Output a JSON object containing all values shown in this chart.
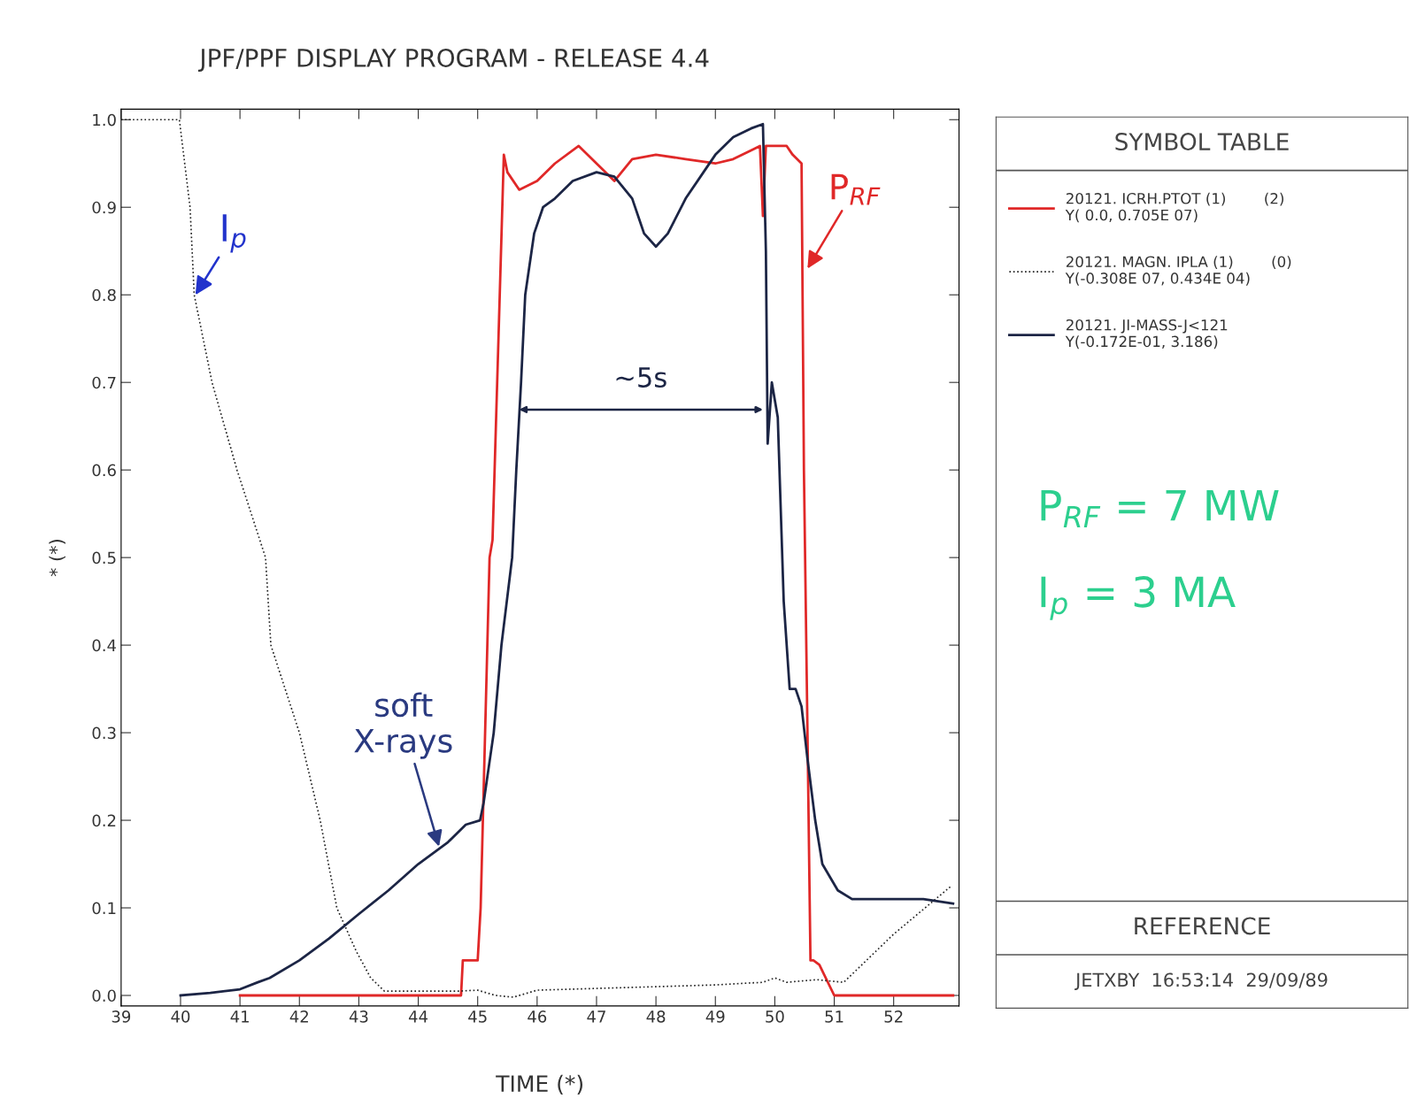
{
  "chart_data": {
    "type": "line",
    "title": "JPF/PPF DISPLAY PROGRAM - RELEASE 4.4",
    "xlabel": "TIME (*)",
    "ylabel": "* (*)",
    "xlim": [
      39,
      53.1
    ],
    "ylim": [
      -0.012,
      1.012
    ],
    "xticks": [
      39,
      40,
      41,
      42,
      43,
      44,
      45,
      46,
      47,
      48,
      49,
      50,
      51,
      52
    ],
    "yticks": [
      {
        "value": 0,
        "label": "0.0"
      },
      0.1,
      0.2,
      0.3,
      0.4,
      0.5,
      0.6,
      0.7,
      0.8,
      0.9,
      {
        "value": 1,
        "label": "1.0"
      }
    ],
    "grid": false,
    "legend": "right",
    "legend_title": "SYMBOL TABLE",
    "marker": "none",
    "series": [
      {
        "name": "20121. ICRH.PTOT (1)        (2)\nY( 0.0, 0.705E 07)",
        "color": "#e02828",
        "line_style": "solid",
        "x": [
          41.0,
          42.0,
          43.0,
          44.0,
          44.72,
          44.75,
          45.0,
          45.05,
          45.2,
          45.25,
          45.35,
          45.44,
          45.5,
          45.7,
          46.0,
          46.3,
          46.7,
          47.0,
          47.3,
          47.6,
          48.0,
          48.5,
          49.0,
          49.3,
          49.6,
          49.75,
          49.8,
          49.85,
          50.0,
          50.2,
          50.3,
          50.45,
          50.49,
          50.55,
          50.6,
          50.65,
          50.75,
          51.0,
          52.0,
          53.0
        ],
        "values": [
          0.0,
          0.0,
          0.0,
          0.0,
          0.0,
          0.04,
          0.04,
          0.1,
          0.5,
          0.52,
          0.75,
          0.96,
          0.94,
          0.92,
          0.93,
          0.95,
          0.97,
          0.95,
          0.93,
          0.955,
          0.96,
          0.955,
          0.95,
          0.955,
          0.965,
          0.97,
          0.89,
          0.97,
          0.97,
          0.97,
          0.96,
          0.95,
          0.6,
          0.3,
          0.04,
          0.04,
          0.035,
          0.0,
          0.0,
          0.0
        ]
      },
      {
        "name": "20121. MAGN. IPLA (1)        (0)\nY(-0.308E 07, 0.434E 04)",
        "color": "#222222",
        "line_style": "dotted",
        "x": [
          39.0,
          39.98,
          40.16,
          40.23,
          40.53,
          40.95,
          41.43,
          41.52,
          42.0,
          42.35,
          42.63,
          42.96,
          43.2,
          43.43,
          44.0,
          44.7,
          45.0,
          45.3,
          45.6,
          46.0,
          47.0,
          48.0,
          49.0,
          49.8,
          50.0,
          50.2,
          50.7,
          51.16,
          52.0,
          52.97
        ],
        "values": [
          1.0,
          1.0,
          0.9,
          0.8,
          0.7,
          0.6,
          0.5,
          0.4,
          0.3,
          0.2,
          0.1,
          0.05,
          0.02,
          0.005,
          0.005,
          0.005,
          0.006,
          0.0,
          -0.002,
          0.006,
          0.008,
          0.01,
          0.012,
          0.015,
          0.02,
          0.015,
          0.018,
          0.015,
          0.07,
          0.125
        ]
      },
      {
        "name": "20121. JI-MASS-J<121\nY(-0.172E-01, 3.186)",
        "color": "#1c2545",
        "line_style": "solid",
        "x": [
          40.0,
          40.5,
          41.0,
          41.3,
          41.5,
          42.0,
          42.5,
          43.0,
          43.5,
          44.0,
          44.5,
          44.8,
          45.04,
          45.1,
          45.27,
          45.4,
          45.58,
          45.65,
          45.73,
          45.8,
          45.95,
          46.1,
          46.3,
          46.6,
          47.0,
          47.3,
          47.6,
          47.8,
          48.0,
          48.2,
          48.5,
          48.8,
          49.0,
          49.3,
          49.6,
          49.8,
          49.85,
          49.88,
          49.95,
          50.05,
          50.15,
          50.25,
          50.35,
          50.45,
          50.55,
          50.68,
          50.8,
          51.06,
          51.3,
          52.0,
          52.5,
          53.0
        ],
        "values": [
          0.0,
          0.003,
          0.007,
          0.015,
          0.02,
          0.04,
          0.065,
          0.093,
          0.12,
          0.15,
          0.175,
          0.195,
          0.2,
          0.22,
          0.3,
          0.4,
          0.5,
          0.6,
          0.7,
          0.8,
          0.87,
          0.9,
          0.91,
          0.93,
          0.94,
          0.935,
          0.91,
          0.87,
          0.855,
          0.87,
          0.91,
          0.94,
          0.96,
          0.98,
          0.99,
          0.995,
          0.85,
          0.63,
          0.7,
          0.66,
          0.45,
          0.35,
          0.35,
          0.33,
          0.27,
          0.2,
          0.15,
          0.12,
          0.11,
          0.11,
          0.11,
          0.105
        ]
      }
    ],
    "annotations": [
      "~5s",
      {
        "text": "I$_{p}$",
        "x": 40.25,
        "y": 0.8
      },
      {
        "text": "P$_{RF}$",
        "x": 50.55,
        "y": 0.83
      },
      {
        "text": "soft\nX-rays",
        "x": 44.35,
        "y": 0.17
      },
      "P$_{RF}$ = 7 MW",
      "I$_{p}$ = 3 MA",
      "REFERENCE",
      "JETXBY  16:53:14  29/09/89"
    ]
  }
}
